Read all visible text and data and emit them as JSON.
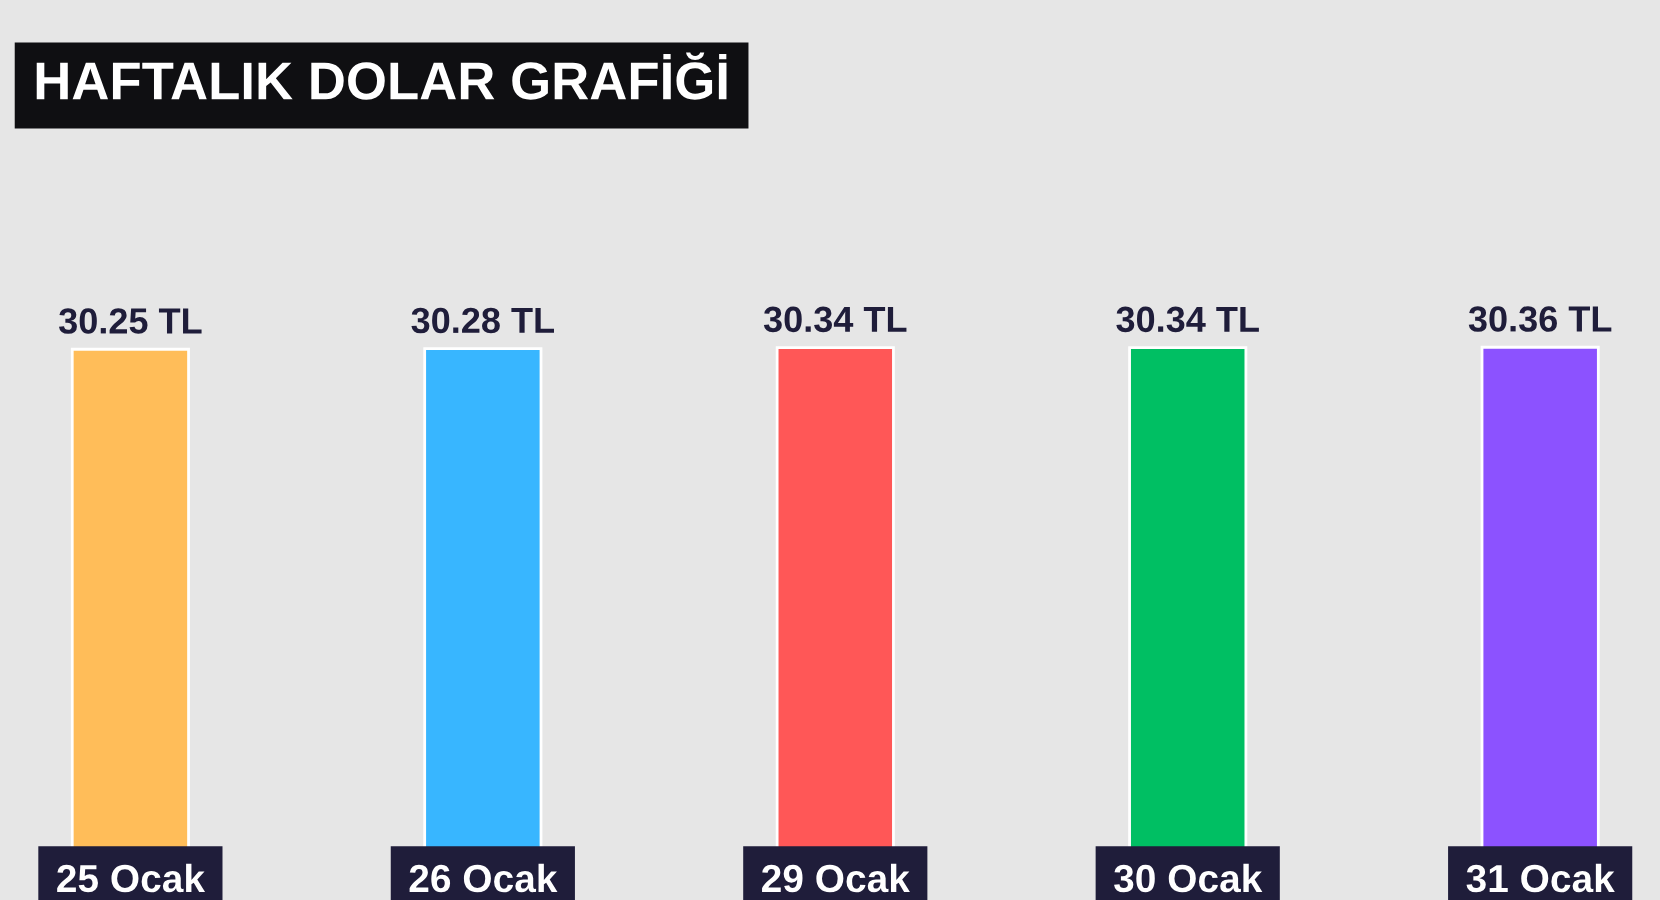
{
  "chart_data": {
    "type": "bar",
    "title": "HAFTALIK DOLAR GRAFİĞİ",
    "categories": [
      "25 Ocak",
      "26 Ocak",
      "29 Ocak",
      "30 Ocak",
      "31 Ocak"
    ],
    "values": [
      30.25,
      30.28,
      30.34,
      30.34,
      30.36
    ],
    "colors": [
      "#ffbd59",
      "#38b6ff",
      "#ff5757",
      "#00bf63",
      "#8c52ff"
    ],
    "value_labels": [
      "30.25 TL",
      "30.28 TL",
      "30.34 TL",
      "30.34 TL",
      "30.36 TL"
    ],
    "legend": false
  }
}
